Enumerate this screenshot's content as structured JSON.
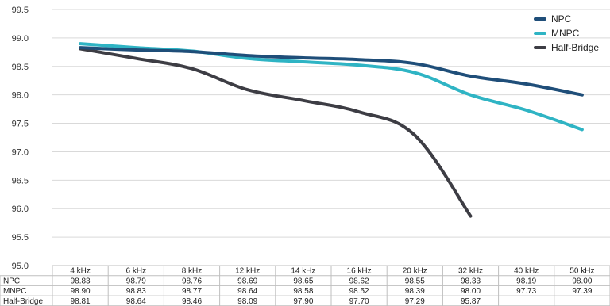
{
  "chart_data": {
    "type": "line",
    "categories": [
      "4 kHz",
      "6 kHz",
      "8 kHz",
      "12 kHz",
      "14 kHz",
      "16 kHz",
      "20 kHz",
      "32 kHz",
      "40 kHz",
      "50 kHz"
    ],
    "series": [
      {
        "name": "NPC",
        "color": "#1f4e79",
        "values": [
          98.83,
          98.79,
          98.76,
          98.69,
          98.65,
          98.62,
          98.55,
          98.33,
          98.19,
          98.0
        ],
        "labels": [
          "98.83",
          "98.79",
          "98.76",
          "98.69",
          "98.65",
          "98.62",
          "98.55",
          "98.33",
          "98.19",
          "98.00"
        ]
      },
      {
        "name": "MNPC",
        "color": "#2fb4c4",
        "values": [
          98.9,
          98.83,
          98.77,
          98.64,
          98.58,
          98.52,
          98.39,
          98.0,
          97.73,
          97.39
        ],
        "labels": [
          "98.90",
          "98.83",
          "98.77",
          "98.64",
          "98.58",
          "98.52",
          "98.39",
          "98.00",
          "97.73",
          "97.39"
        ]
      },
      {
        "name": "Half-Bridge",
        "color": "#3d3d44",
        "values": [
          98.81,
          98.64,
          98.46,
          98.09,
          97.9,
          97.7,
          97.29,
          95.87,
          null,
          null
        ],
        "labels": [
          "98.81",
          "98.64",
          "98.46",
          "98.09",
          "97.90",
          "97.70",
          "97.29",
          "95.87",
          "",
          ""
        ]
      }
    ],
    "yticks": [
      "95.0",
      "95.5",
      "96.0",
      "96.5",
      "97.0",
      "97.5",
      "98.0",
      "98.5",
      "99.0",
      "99.5"
    ],
    "ylim": [
      95.0,
      99.5
    ],
    "grid": true,
    "legend_position": "top-right",
    "data_table": true,
    "title": "",
    "xlabel": "",
    "ylabel": ""
  }
}
